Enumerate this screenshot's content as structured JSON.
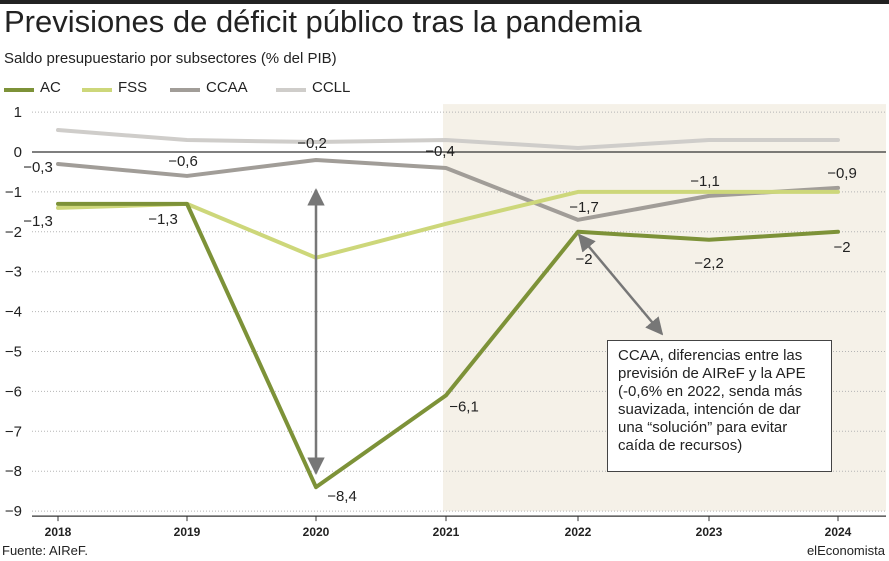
{
  "title": "Previsiones de déficit público tras la pandemia",
  "subtitle": "Saldo presupuestario por subsectores (% del PIB)",
  "source": "Fuente: AIReF.",
  "brand": "elEconomista",
  "colors": {
    "AC": "#7d9238",
    "FSS": "#cdd77a",
    "CCAA": "#a19d98",
    "CCLL": "#cfcdca",
    "forecast_band": "#f5f1e8",
    "grid": "#b5b5b5",
    "arrow": "#777777"
  },
  "annotation": {
    "text": "CCAA, diferencias entre las previsión de AIReF y la APE (-0,6% en 2022, senda más suavizada, intención de dar una “solución” para evitar caída de recursos)"
  },
  "chart_data": {
    "type": "line",
    "title": "Previsiones de déficit público tras la pandemia",
    "subtitle": "Saldo presupuestario por subsectores (% del PIB)",
    "xlabel": "",
    "ylabel": "",
    "x": [
      "2018",
      "2019",
      "2020",
      "2021",
      "2022",
      "2023",
      "2024"
    ],
    "ylim": [
      -9,
      1
    ],
    "yticks": [
      "1",
      "0",
      "−1",
      "−2",
      "−3",
      "−4",
      "−5",
      "−6",
      "−7",
      "−8",
      "−9"
    ],
    "ytick_values": [
      1,
      0,
      -1,
      -2,
      -3,
      -4,
      -5,
      -6,
      -7,
      -8,
      -9
    ],
    "grid": true,
    "legend_position": "top-left",
    "forecast_start": "2021",
    "series": [
      {
        "name": "AC",
        "values": [
          -1.3,
          -1.3,
          -8.4,
          -6.1,
          -2.0,
          -2.2,
          -2.0
        ],
        "labels": [
          "−1,3",
          "−1,3",
          "−8,4",
          "−6,1",
          "−2",
          "−2,2",
          "−2"
        ]
      },
      {
        "name": "FSS",
        "values": [
          -1.4,
          -1.3,
          -2.65,
          -1.8,
          -1.0,
          -1.0,
          -1.0
        ],
        "labels": []
      },
      {
        "name": "CCAA",
        "values": [
          -0.3,
          -0.6,
          -0.2,
          -0.4,
          -1.7,
          -1.1,
          -0.9
        ],
        "labels": [
          "−0,3",
          "−0,6",
          "−0,2",
          "−0,4",
          "−1,7",
          "−1,1",
          "−0,9"
        ]
      },
      {
        "name": "CCLL",
        "values": [
          0.55,
          0.3,
          0.25,
          0.3,
          0.1,
          0.3,
          0.3
        ],
        "labels": []
      }
    ]
  }
}
